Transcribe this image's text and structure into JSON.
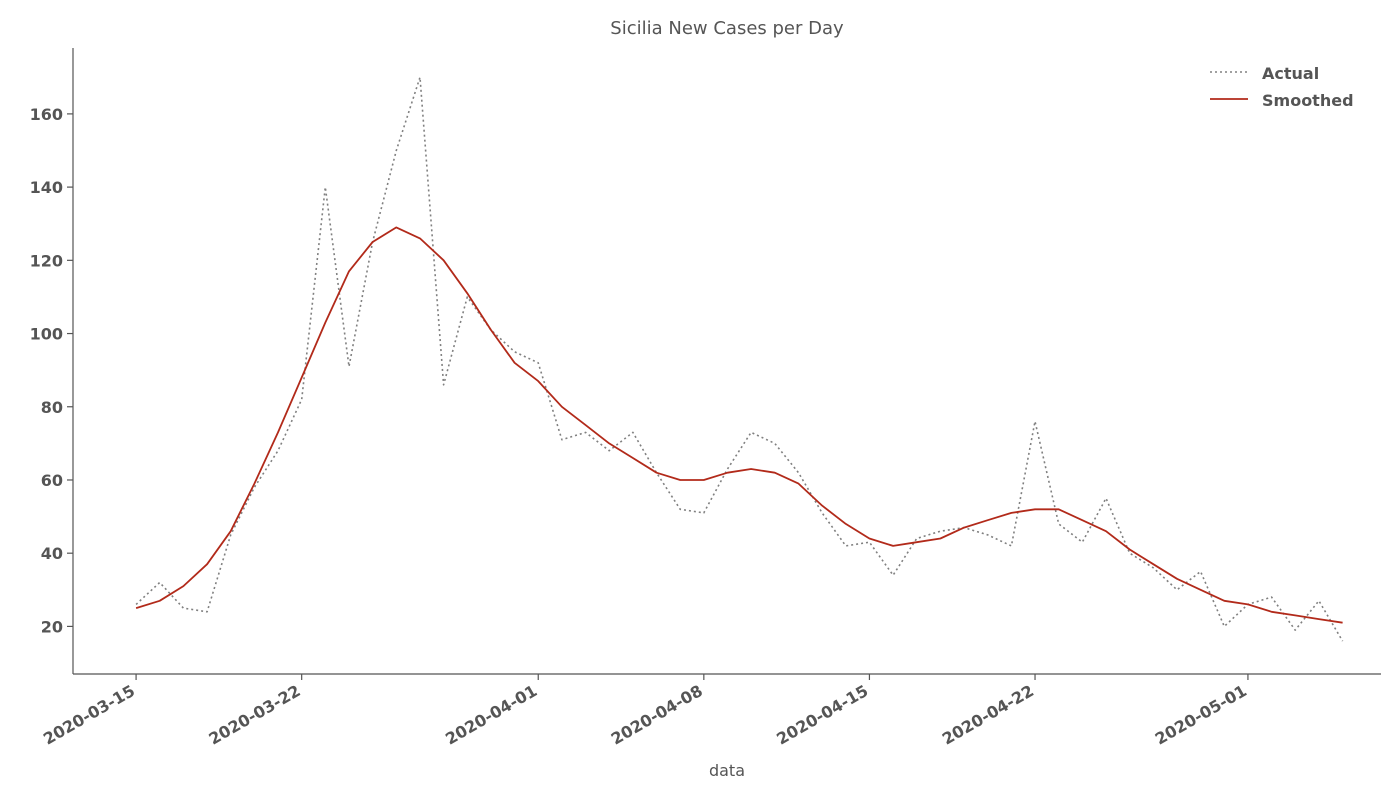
{
  "chart_data": {
    "type": "line",
    "title": "Sicilia New Cases per Day",
    "xlabel": "data",
    "ylabel": "",
    "x": [
      "2020-03-15",
      "2020-03-16",
      "2020-03-17",
      "2020-03-18",
      "2020-03-19",
      "2020-03-20",
      "2020-03-21",
      "2020-03-22",
      "2020-03-23",
      "2020-03-24",
      "2020-03-25",
      "2020-03-26",
      "2020-03-27",
      "2020-03-28",
      "2020-03-29",
      "2020-03-30",
      "2020-03-31",
      "2020-04-01",
      "2020-04-02",
      "2020-04-03",
      "2020-04-04",
      "2020-04-05",
      "2020-04-06",
      "2020-04-07",
      "2020-04-08",
      "2020-04-09",
      "2020-04-10",
      "2020-04-11",
      "2020-04-12",
      "2020-04-13",
      "2020-04-14",
      "2020-04-15",
      "2020-04-16",
      "2020-04-17",
      "2020-04-18",
      "2020-04-19",
      "2020-04-20",
      "2020-04-21",
      "2020-04-22",
      "2020-04-23",
      "2020-04-24",
      "2020-04-25",
      "2020-04-26",
      "2020-04-27",
      "2020-04-28",
      "2020-04-29",
      "2020-04-30",
      "2020-05-01",
      "2020-05-02",
      "2020-05-03",
      "2020-05-04",
      "2020-05-05"
    ],
    "series": [
      {
        "name": "Actual",
        "color": "#808080",
        "style": "dotted",
        "values": [
          26,
          32,
          25,
          24,
          45,
          58,
          68,
          82,
          140,
          91,
          125,
          150,
          170,
          86,
          110,
          101,
          95,
          92,
          71,
          73,
          68,
          73,
          62,
          52,
          51,
          63,
          73,
          70,
          62,
          51,
          42,
          43,
          34,
          44,
          46,
          47,
          45,
          42,
          76,
          48,
          43,
          55,
          40,
          36,
          30,
          35,
          20,
          26,
          28,
          19,
          27,
          16
        ]
      },
      {
        "name": "Smoothed",
        "color": "#b22a1a",
        "style": "solid",
        "values": [
          25,
          27,
          31,
          37,
          46,
          59,
          73,
          88,
          103,
          117,
          125,
          129,
          126,
          120,
          111,
          101,
          92,
          87,
          80,
          75,
          70,
          66,
          62,
          60,
          60,
          62,
          63,
          62,
          59,
          53,
          48,
          44,
          42,
          43,
          44,
          47,
          49,
          51,
          52,
          52,
          49,
          46,
          41,
          37,
          33,
          30,
          27,
          26,
          24,
          23,
          22,
          21
        ]
      }
    ],
    "x_ticks": [
      "2020-03-15",
      "2020-03-22",
      "2020-04-01",
      "2020-04-08",
      "2020-04-15",
      "2020-04-22",
      "2020-05-01"
    ],
    "y_ticks": [
      20,
      40,
      60,
      80,
      100,
      120,
      140,
      160
    ],
    "ylim": [
      7,
      178
    ],
    "xlim": [
      "2020-03-12 08:00",
      "2020-05-06 15:00"
    ],
    "grid": false,
    "legend_position": "top-right"
  }
}
